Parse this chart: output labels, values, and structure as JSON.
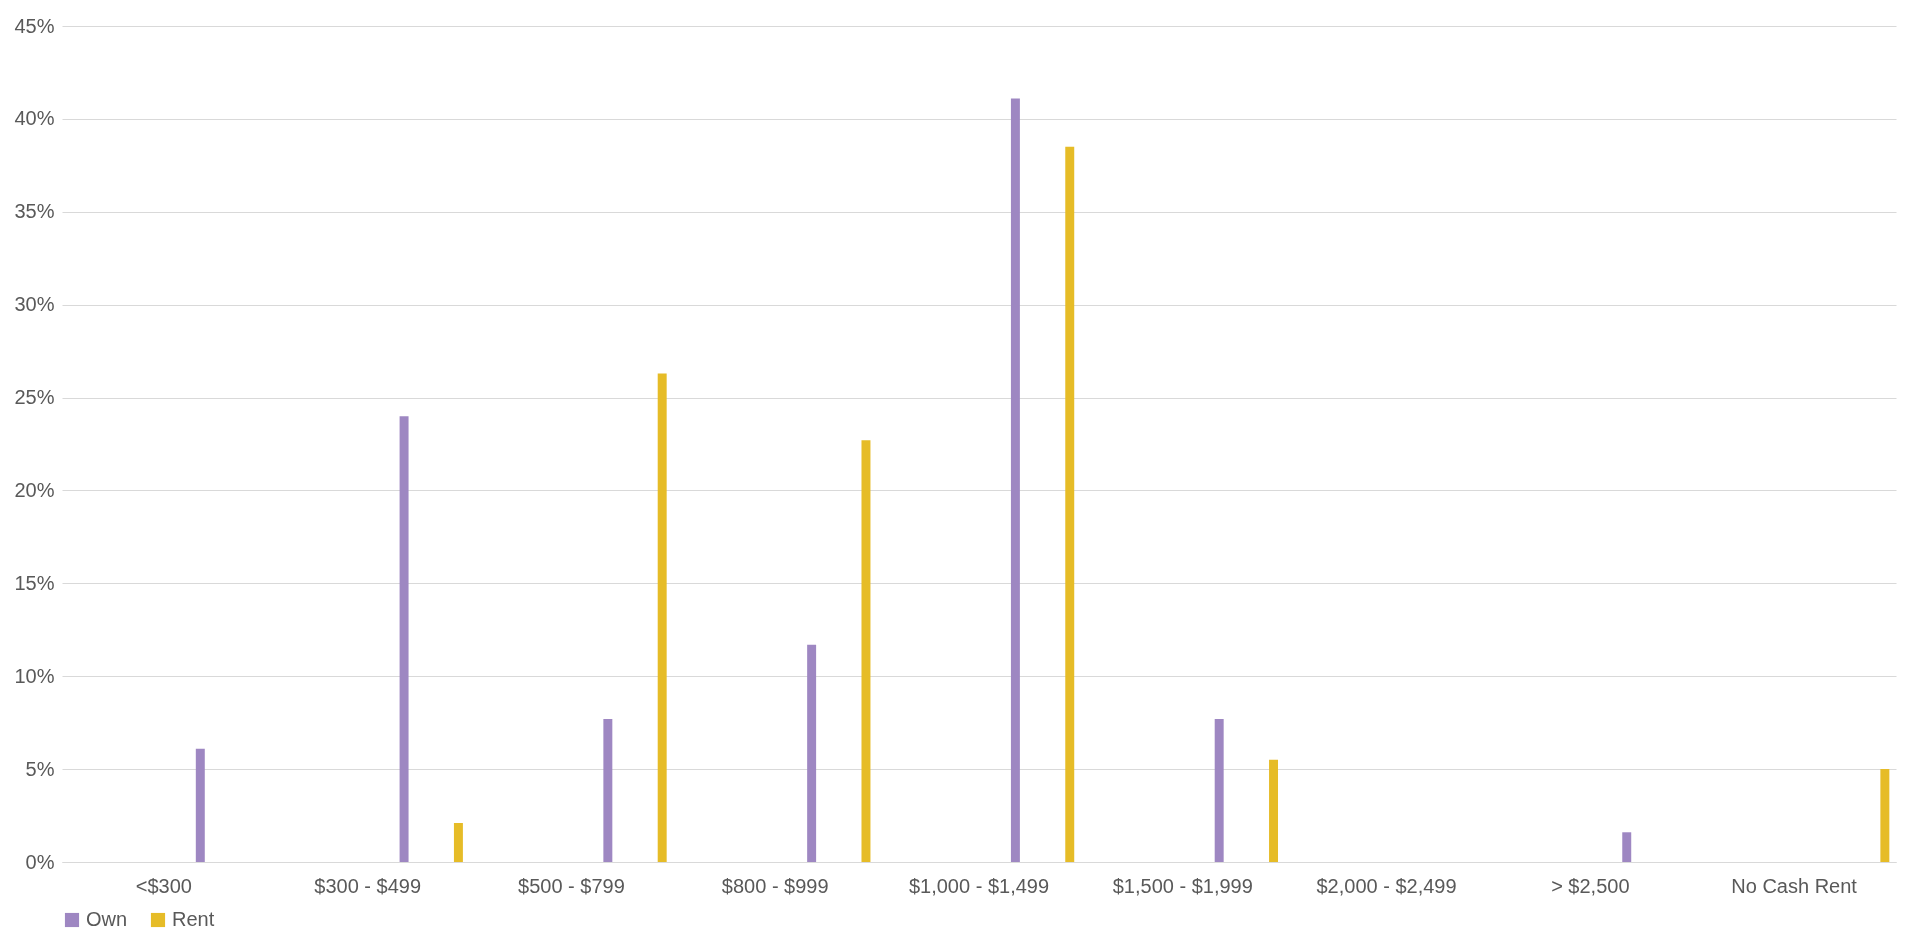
{
  "chart_data": {
    "type": "bar",
    "categories": [
      "<$300",
      "$300 - $499",
      "$500 - $799",
      "$800 - $999",
      "$1,000 - $1,499",
      "$1,500 - $1,999",
      "$2,000 - $2,499",
      "> $2,500",
      "No Cash Rent"
    ],
    "series": [
      {
        "name": "Own",
        "color": "#9e87c2",
        "values": [
          6.1,
          24.0,
          7.7,
          11.7,
          41.1,
          7.7,
          null,
          1.6,
          null
        ]
      },
      {
        "name": "Rent",
        "color": "#e6bc27",
        "values": [
          null,
          2.1,
          26.3,
          22.7,
          38.5,
          5.5,
          null,
          null,
          5.0
        ]
      }
    ],
    "ylim": [
      0,
      45
    ],
    "yticks": [
      {
        "value": 0,
        "label": "0%"
      },
      {
        "value": 5,
        "label": "5%"
      },
      {
        "value": 10,
        "label": "10%"
      },
      {
        "value": 15,
        "label": "15%"
      },
      {
        "value": 20,
        "label": "20%"
      },
      {
        "value": 25,
        "label": "25%"
      },
      {
        "value": 30,
        "label": "30%"
      },
      {
        "value": 35,
        "label": "35%"
      },
      {
        "value": 40,
        "label": "40%"
      },
      {
        "value": 45,
        "label": "45%"
      }
    ],
    "grid": "y",
    "legend": "bottom"
  }
}
